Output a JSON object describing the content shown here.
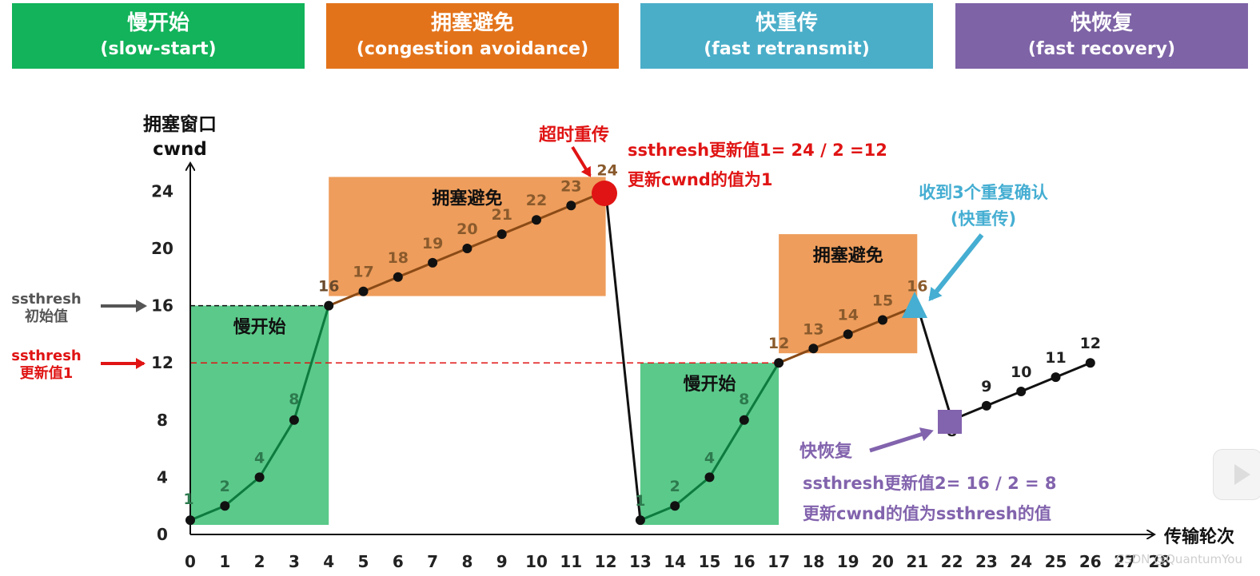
{
  "colors": {
    "slow_start": "#12b35a",
    "congestion_avoidance": "#e3731a",
    "fast_retransmit": "#4aaec9",
    "fast_recovery": "#7e63a6",
    "slow_start_region": "#5bc98a",
    "avoidance_region": "#ee9d5c",
    "timeout_red": "#e01414",
    "marker_blue": "#45aed2",
    "marker_purple": "#8263ad",
    "initial_arrow": "#555555"
  },
  "phases": [
    {
      "zh": "慢开始",
      "en": "(slow-start)"
    },
    {
      "zh": "拥塞避免",
      "en": "(congestion avoidance)"
    },
    {
      "zh": "快重传",
      "en": "(fast retransmit)"
    },
    {
      "zh": "快恢复",
      "en": "(fast recovery)"
    }
  ],
  "chart_data": {
    "type": "line",
    "ylabel_line1": "拥塞窗口",
    "ylabel_line2": "cwnd",
    "xlabel": "传输轮次",
    "x_ticks": [
      0,
      1,
      2,
      3,
      4,
      5,
      6,
      7,
      8,
      9,
      10,
      11,
      12,
      13,
      14,
      15,
      16,
      17,
      18,
      19,
      20,
      21,
      22,
      23,
      24,
      25,
      26,
      27,
      28
    ],
    "y_ticks": [
      0,
      4,
      8,
      12,
      16,
      20,
      24
    ],
    "xlim": [
      0,
      28
    ],
    "ylim": [
      0,
      24
    ],
    "series": [
      {
        "name": "seg1",
        "points": [
          [
            0,
            1
          ],
          [
            1,
            2
          ],
          [
            2,
            4
          ],
          [
            3,
            8
          ],
          [
            4,
            16
          ],
          [
            5,
            17
          ],
          [
            6,
            18
          ],
          [
            7,
            19
          ],
          [
            8,
            20
          ],
          [
            9,
            21
          ],
          [
            10,
            22
          ],
          [
            11,
            23
          ],
          [
            12,
            24
          ],
          [
            13,
            1
          ],
          [
            14,
            2
          ],
          [
            15,
            4
          ],
          [
            16,
            8
          ],
          [
            17,
            12
          ],
          [
            18,
            13
          ],
          [
            19,
            14
          ],
          [
            20,
            15
          ],
          [
            21,
            16
          ],
          [
            22,
            8
          ],
          [
            23,
            9
          ],
          [
            24,
            10
          ],
          [
            25,
            11
          ],
          [
            26,
            12
          ]
        ]
      }
    ],
    "point_labels": [
      "1",
      "2",
      "4",
      "8",
      "16",
      "17",
      "18",
      "19",
      "20",
      "21",
      "22",
      "23",
      "24",
      "1",
      "2",
      "4",
      "8",
      "12",
      "13",
      "14",
      "15",
      "16",
      "8",
      "9",
      "10",
      "11",
      "12"
    ],
    "regions": [
      {
        "label": "慢开始",
        "x0": 0,
        "x1": 4,
        "y0": 0,
        "y1": 16
      },
      {
        "label": "拥塞避免",
        "x0": 4,
        "x1": 12,
        "y0": 16,
        "y1": 25
      },
      {
        "label": "慢开始",
        "x0": 13,
        "x1": 17,
        "y0": 0,
        "y1": 12
      },
      {
        "label": "拥塞避免",
        "x0": 17,
        "x1": 21,
        "y0": 12,
        "y1": 21
      }
    ],
    "thresholds": [
      {
        "value": 16,
        "label_line1": "ssthresh",
        "label_line2": "初始值"
      },
      {
        "value": 12,
        "label_line1": "ssthresh",
        "label_line2": "更新值1"
      }
    ],
    "annotations": {
      "timeout": "超时重传",
      "timeout_note1": "ssthresh更新值1= 24 / 2 =12",
      "timeout_note2": "更新cwnd的值为1",
      "triple_ack1": "收到3个重复确认",
      "triple_ack2": "(快重传)",
      "fast_recovery": "快恢复",
      "fr_note1": "ssthresh更新值2= 16 / 2 = 8",
      "fr_note2": "更新cwnd的值为ssthresh的值"
    }
  },
  "watermark": "CSDN @QuantumYou"
}
